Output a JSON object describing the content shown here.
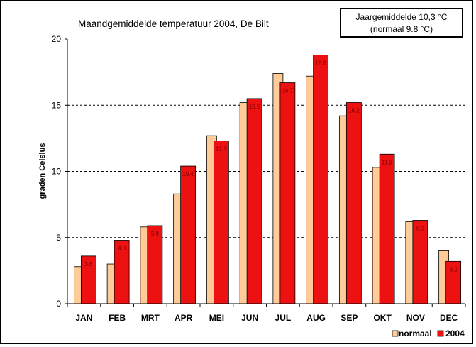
{
  "chart_data": {
    "type": "bar",
    "title": "Maandgemiddelde temperatuur 2004, De Bilt",
    "ylabel": "graden Celsius",
    "xlabel": "",
    "ylim": [
      0,
      20
    ],
    "yticks": [
      0,
      5,
      10,
      15,
      20
    ],
    "grid": "dashed horizontal at 5, 10, 15",
    "categories": [
      "JAN",
      "FEB",
      "MRT",
      "APR",
      "MEI",
      "JUN",
      "JUL",
      "AUG",
      "SEP",
      "OKT",
      "NOV",
      "DEC"
    ],
    "series": [
      {
        "name": "normaal",
        "color": "#ffcc99",
        "values": [
          2.8,
          3.0,
          5.8,
          8.3,
          12.7,
          15.2,
          17.4,
          17.2,
          14.2,
          10.3,
          6.2,
          4.0
        ]
      },
      {
        "name": "2004",
        "color": "#ee1111",
        "values": [
          3.6,
          4.8,
          5.9,
          10.4,
          12.3,
          15.5,
          16.7,
          18.8,
          15.2,
          11.3,
          6.3,
          3.2
        ],
        "labels": [
          "3.6",
          "4.8",
          "5.9",
          "10.4",
          "12.3",
          "15.5",
          "16.7",
          "18.8",
          "15.2",
          "11.3",
          "6.3",
          "3.2"
        ]
      }
    ],
    "legend_position": "bottom-right",
    "annotation": {
      "line1": "Jaargemiddelde 10,3 °C",
      "line2": "(normaal 9.8 °C)"
    }
  }
}
